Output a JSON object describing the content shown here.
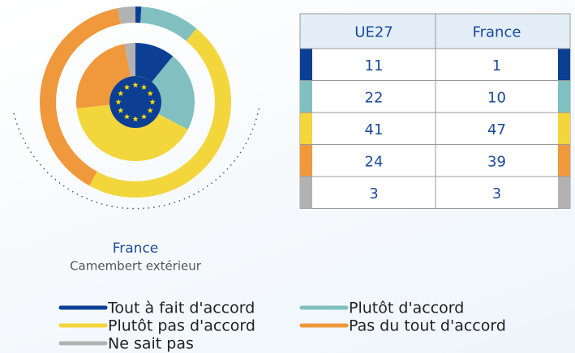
{
  "chart_data": {
    "type": "donut",
    "categories": [
      "Tout à fait d'accord",
      "Plutôt d'accord",
      "Plutôt pas d'accord",
      "Pas du tout d'accord",
      "Ne sait pas"
    ],
    "colors": [
      "#0c3f94",
      "#80c0c0",
      "#f2d63c",
      "#f0983c",
      "#b2b2b2"
    ],
    "series": [
      {
        "name": "UE27",
        "values": [
          11,
          22,
          41,
          24,
          3
        ]
      },
      {
        "name": "France",
        "values": [
          1,
          10,
          47,
          39,
          3
        ]
      }
    ],
    "annotation": "Camembert extérieur"
  }
}
